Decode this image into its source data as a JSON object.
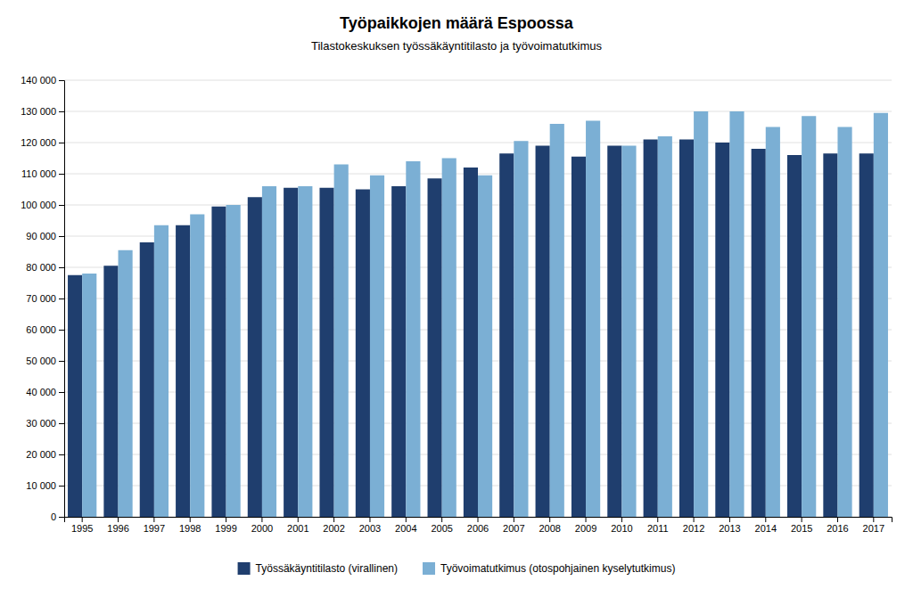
{
  "chart_data": {
    "type": "bar",
    "title": "Työpaikkojen määrä Espoossa",
    "subtitle": "Tilastokeskuksen työssäkäyntitilasto ja työvoimatutkimus",
    "categories": [
      "1995",
      "1996",
      "1997",
      "1998",
      "1999",
      "2000",
      "2001",
      "2002",
      "2003",
      "2004",
      "2005",
      "2006",
      "2007",
      "2008",
      "2009",
      "2010",
      "2011",
      "2012",
      "2013",
      "2014",
      "2015",
      "2016",
      "2017"
    ],
    "series": [
      {
        "name": "Työssäkäyntitilasto (virallinen)",
        "color": "#1f3e6e",
        "values": [
          77500,
          80500,
          88000,
          93500,
          99500,
          102500,
          105500,
          105500,
          105000,
          106000,
          108500,
          112000,
          116500,
          119000,
          115500,
          119000,
          121000,
          121000,
          120000,
          118000,
          116000,
          116500,
          116500
        ]
      },
      {
        "name": "Työvoimatutkimus (otospohjainen kyselytutkimus)",
        "color": "#7bafd4",
        "values": [
          78000,
          85500,
          93500,
          97000,
          100000,
          106000,
          106000,
          113000,
          109500,
          114000,
          115000,
          109500,
          120500,
          126000,
          127000,
          119000,
          122000,
          130000,
          130000,
          125000,
          128500,
          125000,
          129500
        ]
      }
    ],
    "ylim": [
      0,
      140000
    ],
    "yticks": [
      0,
      {
        "value": 10000,
        "label": "10 000"
      },
      {
        "value": 20000,
        "label": "20 000"
      },
      {
        "value": 30000,
        "label": "30 000"
      },
      {
        "value": 40000,
        "label": "40 000"
      },
      {
        "value": 50000,
        "label": "50 000"
      },
      {
        "value": 60000,
        "label": "60 000"
      },
      {
        "value": 70000,
        "label": "70 000"
      },
      {
        "value": 80000,
        "label": "80 000"
      },
      {
        "value": 90000,
        "label": "90 000"
      },
      {
        "value": 100000,
        "label": "100 000"
      },
      {
        "value": 110000,
        "label": "110 000"
      },
      {
        "value": 120000,
        "label": "120 000"
      },
      {
        "value": 130000,
        "label": "130 000"
      },
      {
        "value": 140000,
        "label": "140 000"
      }
    ],
    "grid": true,
    "legend": "bottom"
  }
}
